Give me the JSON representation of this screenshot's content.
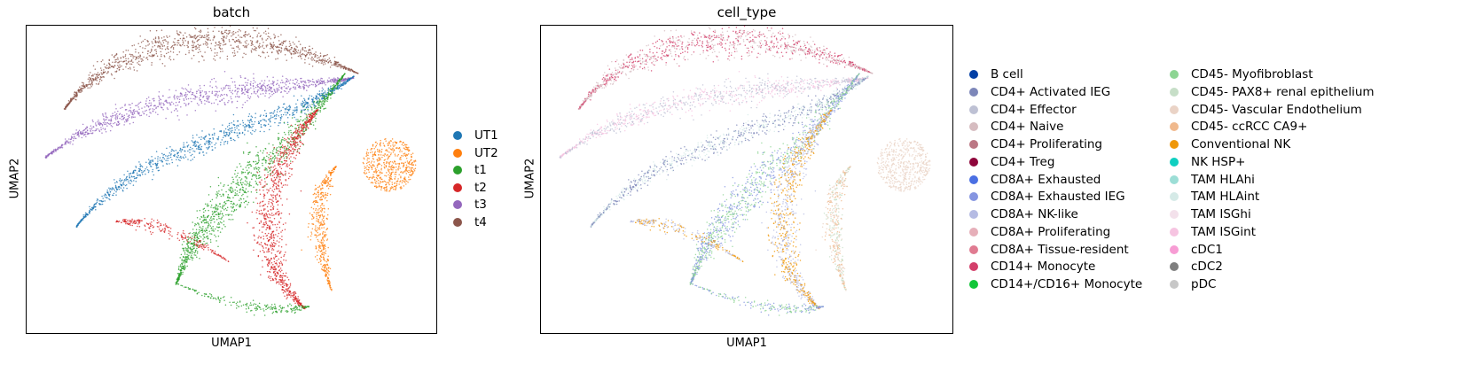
{
  "chart_data": [
    {
      "type": "scatter",
      "title": "batch",
      "xlabel": "UMAP1",
      "ylabel": "UMAP2",
      "legend_position": "right",
      "grid": false,
      "ticks": false,
      "series": [
        {
          "name": "UT1",
          "color": "#1f77b4"
        },
        {
          "name": "UT2",
          "color": "#ff7f0e"
        },
        {
          "name": "t1",
          "color": "#2ca02c"
        },
        {
          "name": "t2",
          "color": "#d62728"
        },
        {
          "name": "t3",
          "color": "#9467bd"
        },
        {
          "name": "t4",
          "color": "#8c564b"
        }
      ]
    },
    {
      "type": "scatter",
      "title": "cell_type",
      "xlabel": "UMAP1",
      "ylabel": "UMAP2",
      "legend_position": "right",
      "grid": false,
      "ticks": false,
      "series": [
        {
          "name": "B cell",
          "color": "#023fa5"
        },
        {
          "name": "CD4+ Activated IEG",
          "color": "#7d87b9"
        },
        {
          "name": "CD4+ Effector",
          "color": "#bec1d4"
        },
        {
          "name": "CD4+ Naive",
          "color": "#d6bcc0"
        },
        {
          "name": "CD4+ Proliferating",
          "color": "#bb7784"
        },
        {
          "name": "CD4+ Treg",
          "color": "#8e063b"
        },
        {
          "name": "CD8A+ Exhausted",
          "color": "#4a6fe3"
        },
        {
          "name": "CD8A+ Exhausted IEG",
          "color": "#8595e1"
        },
        {
          "name": "CD8A+ NK-like",
          "color": "#b5bbe3"
        },
        {
          "name": "CD8A+ Proliferating",
          "color": "#e6afb9"
        },
        {
          "name": "CD8A+ Tissue-resident",
          "color": "#e07b91"
        },
        {
          "name": "CD14+ Monocyte",
          "color": "#d33f6a"
        },
        {
          "name": "CD14+/CD16+ Monocyte",
          "color": "#11c638"
        },
        {
          "name": "CD45- Myofibroblast",
          "color": "#8dd593"
        },
        {
          "name": "CD45- PAX8+ renal epithelium",
          "color": "#c6dec7"
        },
        {
          "name": "CD45- Vascular Endothelium",
          "color": "#ead3c6"
        },
        {
          "name": "CD45- ccRCC CA9+",
          "color": "#f0b98d"
        },
        {
          "name": "Conventional NK",
          "color": "#ef9708"
        },
        {
          "name": "NK HSP+",
          "color": "#0fcfc0"
        },
        {
          "name": "TAM HLAhi",
          "color": "#9cded6"
        },
        {
          "name": "TAM HLAint",
          "color": "#d5eae7"
        },
        {
          "name": "TAM ISGhi",
          "color": "#f3e1eb"
        },
        {
          "name": "TAM ISGint",
          "color": "#f6c4e1"
        },
        {
          "name": "cDC1",
          "color": "#f79cd4"
        },
        {
          "name": "cDC2",
          "color": "#7f7f7f"
        },
        {
          "name": "pDC",
          "color": "#c7c7c7"
        }
      ]
    }
  ]
}
